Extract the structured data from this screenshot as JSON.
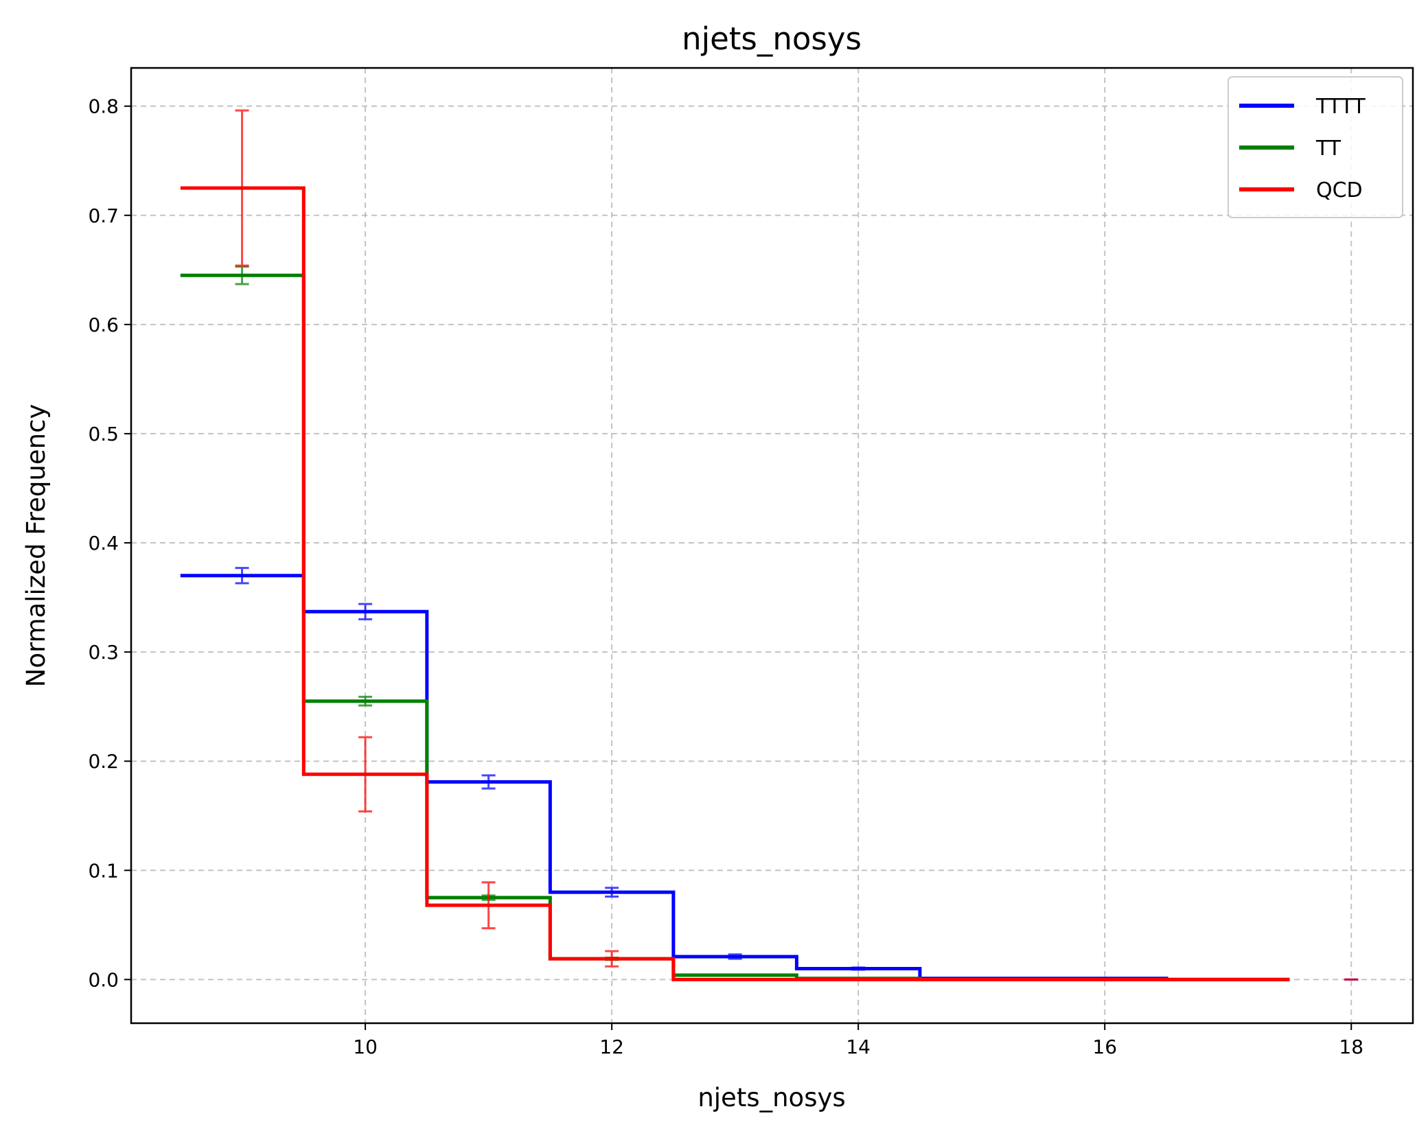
{
  "chart_data": {
    "type": "line",
    "title": "njets_nosys",
    "xlabel": "njets_nosys",
    "ylabel": "Normalized Frequency",
    "xlim": [
      8.1,
      18.5
    ],
    "ylim": [
      -0.04,
      0.835
    ],
    "xticks": [
      10,
      12,
      14,
      16,
      18
    ],
    "yticks": [
      0.0,
      0.1,
      0.2,
      0.3,
      0.4,
      0.5,
      0.6,
      0.7,
      0.8
    ],
    "xtick_labels": [
      "10",
      "12",
      "14",
      "16",
      "18"
    ],
    "ytick_labels": [
      "0.0",
      "0.1",
      "0.2",
      "0.3",
      "0.4",
      "0.5",
      "0.6",
      "0.7",
      "0.8"
    ],
    "grid": true,
    "legend": "top-right",
    "bin_edges": [
      8.5,
      9.5,
      10.5,
      11.5,
      12.5,
      13.5,
      14.5,
      15.5,
      16.5,
      17.5
    ],
    "bin_centers": [
      9,
      10,
      11,
      12,
      13,
      14,
      15,
      16,
      17
    ],
    "series": [
      {
        "name": "TTTT",
        "color": "#0000ff",
        "values": [
          0.37,
          0.337,
          0.181,
          0.08,
          0.021,
          0.01,
          0.001,
          0.001,
          0.0
        ],
        "errors": [
          0.007,
          0.007,
          0.006,
          0.004,
          0.002,
          0.001,
          0.0,
          0.0,
          0.0
        ],
        "extra_points": [
          {
            "x": 18,
            "y": 0.0,
            "err": 0.0
          }
        ]
      },
      {
        "name": "TT",
        "color": "#008000",
        "values": [
          0.645,
          0.255,
          0.075,
          0.019,
          0.004,
          0.001,
          0.0,
          0.0,
          0.0
        ],
        "errors": [
          0.008,
          0.004,
          0.002,
          0.001,
          0.0,
          0.0,
          0.0,
          0.0,
          0.0
        ],
        "extra_points": []
      },
      {
        "name": "QCD",
        "color": "#ff0000",
        "values": [
          0.725,
          0.188,
          0.068,
          0.019,
          0.0,
          0.0,
          0.0,
          0.0,
          0.0
        ],
        "errors": [
          0.071,
          0.034,
          0.021,
          0.007,
          0.0,
          0.0,
          0.0,
          0.0,
          0.0
        ],
        "extra_points": [
          {
            "x": 18,
            "y": 0.0,
            "err": 0.0
          }
        ]
      }
    ]
  }
}
